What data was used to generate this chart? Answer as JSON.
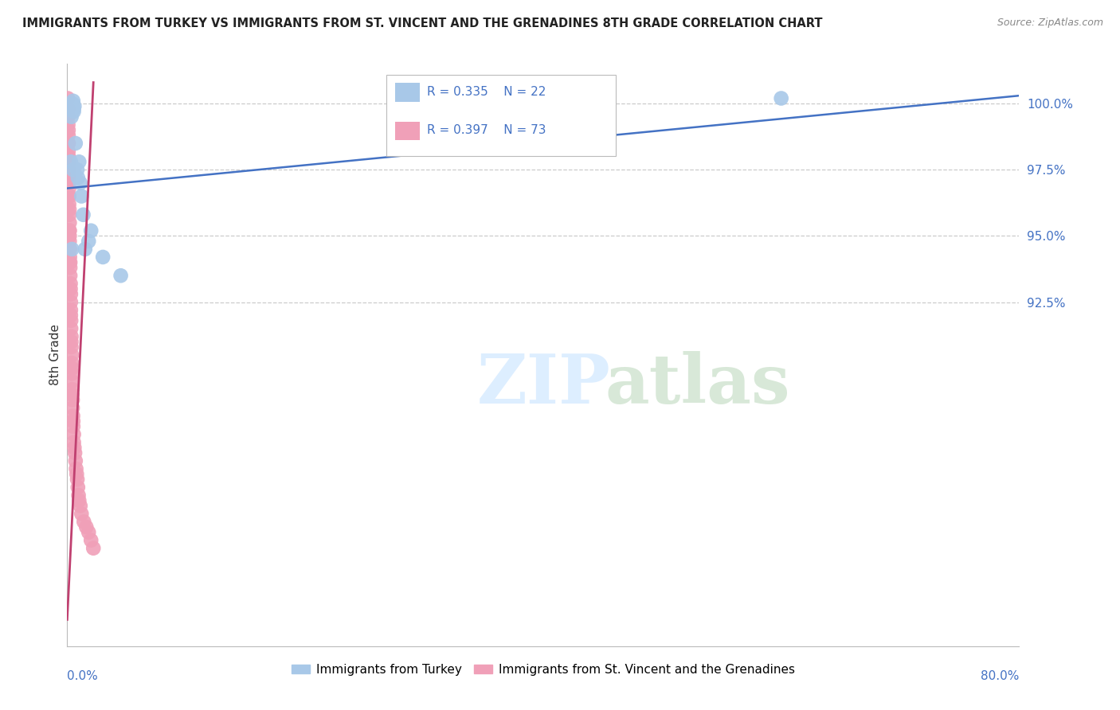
{
  "title": "IMMIGRANTS FROM TURKEY VS IMMIGRANTS FROM ST. VINCENT AND THE GRENADINES 8TH GRADE CORRELATION CHART",
  "source": "Source: ZipAtlas.com",
  "ylabel": "8th Grade",
  "xlim": [
    0.0,
    80.0
  ],
  "ylim": [
    79.5,
    101.5
  ],
  "legend_r1": "R = 0.335",
  "legend_n1": "N = 22",
  "legend_r2": "R = 0.397",
  "legend_n2": "N = 73",
  "color_blue": "#a8c8e8",
  "color_pink": "#f0a0b8",
  "line_blue": "#4472c4",
  "line_pink": "#c04070",
  "ytick_positions": [
    92.5,
    95.0,
    97.5,
    100.0
  ],
  "ytick_labels": [
    "92.5%",
    "95.0%",
    "97.5%",
    "100.0%"
  ],
  "grid_lines": [
    92.5,
    95.0,
    97.5,
    100.0
  ],
  "blue_line_x": [
    0.0,
    80.0
  ],
  "blue_line_y": [
    96.8,
    100.3
  ],
  "pink_line_x": [
    0.0,
    2.2
  ],
  "pink_line_y": [
    80.5,
    100.8
  ],
  "turkey_x": [
    0.35,
    0.55,
    0.45,
    0.5,
    0.55,
    0.6,
    0.7,
    0.85,
    0.9,
    1.0,
    1.1,
    1.2,
    1.35,
    1.5,
    1.8,
    2.0,
    3.0,
    4.5,
    0.3,
    0.4,
    0.5,
    60.0
  ],
  "turkey_y": [
    99.5,
    99.8,
    100.0,
    100.1,
    99.7,
    99.9,
    98.5,
    97.5,
    97.2,
    97.8,
    97.0,
    96.5,
    95.8,
    94.5,
    94.8,
    95.2,
    94.2,
    93.5,
    97.8,
    94.5,
    97.5,
    100.2
  ],
  "stvincent_x": [
    0.05,
    0.08,
    0.08,
    0.08,
    0.1,
    0.1,
    0.1,
    0.1,
    0.12,
    0.12,
    0.12,
    0.15,
    0.15,
    0.15,
    0.15,
    0.15,
    0.18,
    0.18,
    0.2,
    0.2,
    0.2,
    0.2,
    0.22,
    0.22,
    0.25,
    0.25,
    0.25,
    0.28,
    0.28,
    0.3,
    0.3,
    0.3,
    0.3,
    0.32,
    0.32,
    0.35,
    0.35,
    0.35,
    0.38,
    0.38,
    0.4,
    0.4,
    0.4,
    0.42,
    0.42,
    0.45,
    0.45,
    0.48,
    0.5,
    0.5,
    0.55,
    0.55,
    0.6,
    0.65,
    0.7,
    0.75,
    0.8,
    0.85,
    0.9,
    0.95,
    1.0,
    1.1,
    1.2,
    1.4,
    1.6,
    1.8,
    2.0,
    2.2,
    0.1,
    0.12,
    0.15,
    0.18,
    0.2
  ],
  "stvincent_y": [
    100.2,
    99.8,
    99.5,
    99.2,
    99.0,
    98.8,
    98.5,
    98.2,
    98.0,
    97.8,
    97.5,
    97.2,
    97.0,
    96.8,
    96.5,
    96.2,
    96.0,
    95.8,
    95.5,
    95.2,
    95.0,
    94.8,
    94.5,
    94.2,
    94.0,
    93.8,
    93.5,
    93.2,
    93.0,
    92.8,
    92.5,
    92.2,
    92.0,
    91.8,
    91.5,
    91.2,
    91.0,
    90.8,
    90.5,
    90.2,
    90.0,
    89.8,
    89.5,
    89.2,
    89.0,
    88.8,
    88.5,
    88.2,
    88.0,
    87.8,
    87.5,
    87.2,
    87.0,
    86.8,
    86.5,
    86.2,
    86.0,
    85.8,
    85.5,
    85.2,
    85.0,
    84.8,
    84.5,
    84.2,
    84.0,
    83.8,
    83.5,
    83.2,
    98.5,
    97.8,
    96.5,
    95.2,
    94.0
  ]
}
